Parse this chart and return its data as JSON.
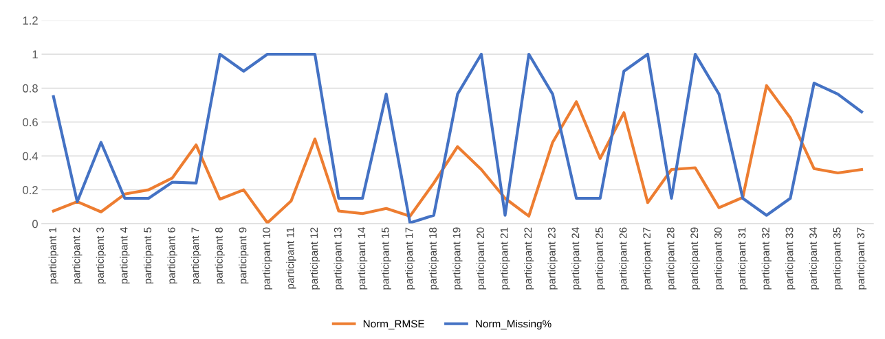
{
  "chart_data": {
    "type": "line",
    "categories": [
      "participant 1",
      "participant 2",
      "participant 3",
      "participant 4",
      "participant 5",
      "participant 6",
      "participant 7",
      "participant 8",
      "participant 9",
      "participant 10",
      "participant 11",
      "participant 12",
      "participant 13",
      "participant 14",
      "participant 15",
      "participant 17",
      "participant 18",
      "participant 19",
      "participant 20",
      "participant 21",
      "participant 22",
      "participant 23",
      "participant 24",
      "participant 25",
      "participant 26",
      "participant 27",
      "participant 28",
      "participant 29",
      "participant 30",
      "participant 31",
      "participant 32",
      "participant 33",
      "participant 34",
      "participant 35",
      "participant 37"
    ],
    "series": [
      {
        "name": "Norm_RMSE",
        "color": "#ed7d31",
        "values": [
          0.075,
          0.13,
          0.07,
          0.175,
          0.2,
          0.27,
          0.465,
          0.145,
          0.2,
          0.005,
          0.135,
          0.5,
          0.075,
          0.06,
          0.09,
          0.045,
          0.24,
          0.455,
          0.32,
          0.15,
          0.045,
          0.48,
          0.72,
          0.385,
          0.655,
          0.125,
          0.32,
          0.33,
          0.095,
          0.155,
          0.815,
          0.625,
          0.325,
          0.3,
          0.32
        ]
      },
      {
        "name": "Norm_Missing%",
        "color": "#4472c4",
        "values": [
          0.75,
          0.13,
          0.48,
          0.15,
          0.15,
          0.245,
          0.24,
          1,
          0.9,
          1,
          1,
          1,
          0.15,
          0.15,
          0.765,
          0.005,
          0.05,
          0.765,
          1,
          0.05,
          1,
          0.765,
          0.15,
          0.15,
          0.9,
          1,
          0.15,
          1,
          0.765,
          0.15,
          0.05,
          0.15,
          0.83,
          0.765,
          0.66
        ]
      }
    ],
    "ylim": [
      0,
      1.2
    ],
    "yticks": [
      0,
      0.2,
      0.4,
      0.6,
      0.8,
      1,
      1.2
    ],
    "grid": "y",
    "legend": "bottom",
    "marker": "none",
    "line_style": "solid"
  }
}
